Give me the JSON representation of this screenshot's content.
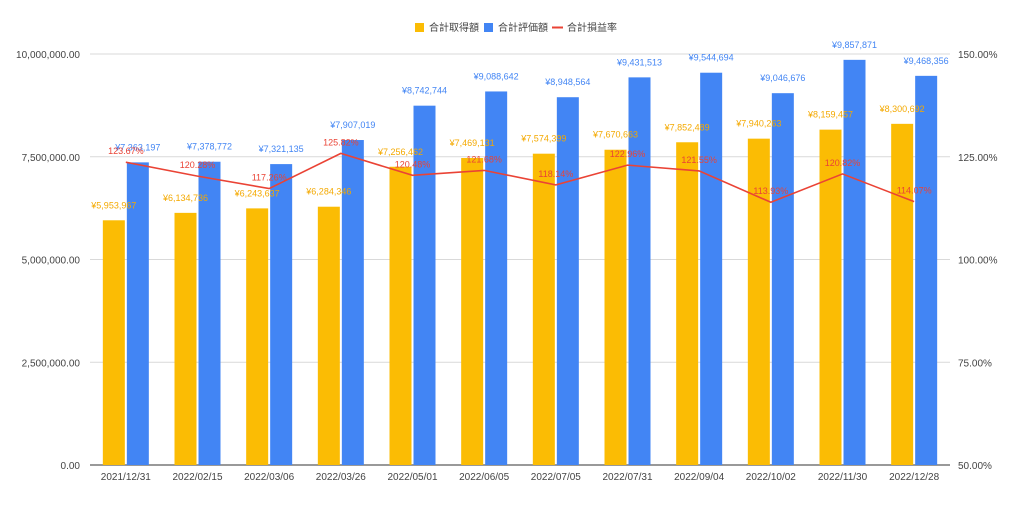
{
  "chart_data": {
    "type": "bar",
    "categories": [
      "2021/12/31",
      "2022/02/15",
      "2022/03/06",
      "2022/03/26",
      "2022/05/01",
      "2022/06/05",
      "2022/07/05",
      "2022/07/31",
      "2022/09/04",
      "2022/10/02",
      "2022/11/30",
      "2022/12/28"
    ],
    "legend": [
      {
        "name": "合計取得額",
        "color": "#fbbc04",
        "kind": "bar"
      },
      {
        "name": "合計評価額",
        "color": "#4285f4",
        "kind": "bar"
      },
      {
        "name": "合計損益率",
        "color": "#ea4335",
        "kind": "line"
      }
    ],
    "legend_position": "top",
    "series": [
      {
        "name": "合計取得額",
        "color": "#fbbc04",
        "type": "bar",
        "axis": "left",
        "values": [
          5953967,
          6134736,
          6243637,
          6284346,
          7256462,
          7469131,
          7574399,
          7670663,
          7852489,
          7940263,
          8159457,
          8300692
        ],
        "labels": [
          "¥5,953,967",
          "¥6,134,736",
          "¥6,243,637",
          "¥6,284,346",
          "¥7,256,462",
          "¥7,469,131",
          "¥7,574,399",
          "¥7,670,663",
          "¥7,852,489",
          "¥7,940,263",
          "¥8,159,457",
          "¥8,300,692"
        ]
      },
      {
        "name": "合計評価額",
        "color": "#4285f4",
        "type": "bar",
        "axis": "left",
        "values": [
          7363197,
          7378772,
          7321135,
          7907019,
          8742744,
          9088642,
          8948564,
          9431513,
          9544694,
          9046676,
          9857871,
          9468356
        ],
        "labels": [
          "¥7,363,197",
          "¥7,378,772",
          "¥7,321,135",
          "¥7,907,019",
          "¥8,742,744",
          "¥9,088,642",
          "¥8,948,564",
          "¥9,431,513",
          "¥9,544,694",
          "¥9,046,676",
          "¥9,857,871",
          "¥9,468,356"
        ]
      },
      {
        "name": "合計損益率",
        "color": "#ea4335",
        "type": "line",
        "axis": "right",
        "values": [
          123.67,
          120.28,
          117.26,
          125.82,
          120.48,
          121.68,
          118.14,
          122.96,
          121.55,
          113.93,
          120.82,
          114.07
        ],
        "labels": [
          "123.67%",
          "120.28%",
          "117.26%",
          "125.82%",
          "120.48%",
          "121.68%",
          "118.14%",
          "122.96%",
          "121.55%",
          "113.93%",
          "120.82%",
          "114.07%"
        ]
      }
    ],
    "y_left": {
      "min": 0,
      "max": 10000000,
      "ticks": [
        "0.00",
        "2,500,000.00",
        "5,000,000.00",
        "7,500,000.00",
        "10,000,000.00"
      ]
    },
    "y_right": {
      "min": 50,
      "max": 150,
      "ticks": [
        "50.00%",
        "75.00%",
        "100.00%",
        "125.00%",
        "150.00%"
      ]
    },
    "grid": true
  }
}
